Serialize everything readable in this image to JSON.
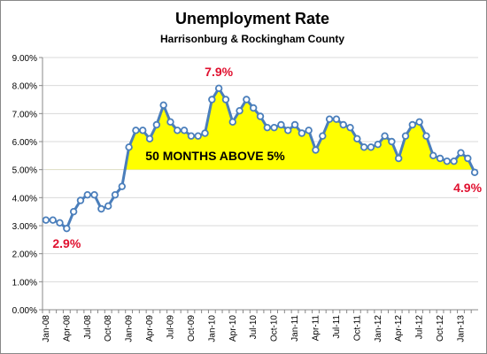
{
  "chart_data": {
    "type": "line",
    "title": "Unemployment Rate",
    "subtitle": "Harrisonburg & Rockingham County",
    "categories": [
      "Jan-08",
      null,
      null,
      "Apr-08",
      null,
      null,
      "Jul-08",
      null,
      null,
      "Oct-08",
      null,
      null,
      "Jan-09",
      null,
      null,
      "Apr-09",
      null,
      null,
      "Jul-09",
      null,
      null,
      "Oct-09",
      null,
      null,
      "Jan-10",
      null,
      null,
      "Apr-10",
      null,
      null,
      "Jul-10",
      null,
      null,
      "Oct-10",
      null,
      null,
      "Jan-11",
      null,
      null,
      "Apr-11",
      null,
      null,
      "Jul-11",
      null,
      null,
      "Oct-11",
      null,
      null,
      "Jan-12",
      null,
      null,
      "Apr-12",
      null,
      null,
      "Jul-12",
      null,
      null,
      "Oct-12",
      null,
      null,
      "Jan-13",
      null,
      null
    ],
    "series": [
      {
        "name": "Unemployment Rate",
        "color": "#4a7ebb",
        "values": [
          3.2,
          3.2,
          3.1,
          2.9,
          3.5,
          3.9,
          4.1,
          4.1,
          3.6,
          3.7,
          4.1,
          4.4,
          5.8,
          6.4,
          6.4,
          6.1,
          6.6,
          7.3,
          6.7,
          6.4,
          6.4,
          6.2,
          6.2,
          6.3,
          7.5,
          7.9,
          7.5,
          6.7,
          7.1,
          7.5,
          7.2,
          6.9,
          6.5,
          6.5,
          6.6,
          6.4,
          6.6,
          6.3,
          6.4,
          5.7,
          6.2,
          6.8,
          6.8,
          6.6,
          6.5,
          6.1,
          5.8,
          5.8,
          5.9,
          6.2,
          6.0,
          5.4,
          6.2,
          6.6,
          6.7,
          6.2,
          5.5,
          5.4,
          5.3,
          5.3,
          5.6,
          5.4,
          4.9
        ],
        "value_labels": [
          null,
          null,
          null,
          "2.9%",
          null,
          null,
          null,
          null,
          null,
          null,
          null,
          null,
          null,
          null,
          null,
          null,
          null,
          null,
          null,
          null,
          null,
          null,
          null,
          null,
          null,
          "7.9%",
          null,
          null,
          null,
          null,
          null,
          null,
          null,
          null,
          null,
          null,
          null,
          null,
          null,
          null,
          null,
          null,
          null,
          null,
          null,
          null,
          null,
          null,
          null,
          null,
          null,
          null,
          null,
          null,
          null,
          null,
          null,
          null,
          null,
          null,
          null,
          null,
          "4.9%"
        ]
      }
    ],
    "value_label_color": "#e0102f",
    "annotation": "50 MONTHS ABOVE 5%",
    "fill_above": 5,
    "fill_color": "#ffff00",
    "ylim": [
      0,
      9
    ],
    "yticks": [
      {
        "value": 0,
        "label": "0.00%"
      },
      {
        "value": 1,
        "label": "1.00%"
      },
      {
        "value": 2,
        "label": "2.00%"
      },
      {
        "value": 3,
        "label": "3.00%"
      },
      {
        "value": 4,
        "label": "4.00%"
      },
      {
        "value": 5,
        "label": "5.00%"
      },
      {
        "value": 6,
        "label": "6.00%"
      },
      {
        "value": 7,
        "label": "7.00%"
      },
      {
        "value": 8,
        "label": "8.00%"
      },
      {
        "value": 9,
        "label": "9.00%"
      }
    ],
    "grid": true
  }
}
